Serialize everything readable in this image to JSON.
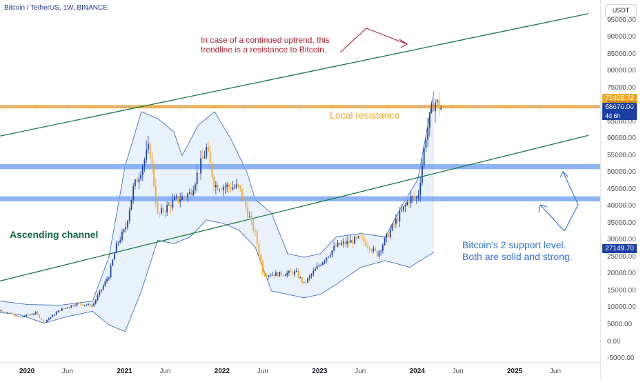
{
  "header": {
    "title": "Bitcoin / TetherUS, 1W, BINANCE",
    "currency_button": "USDT"
  },
  "price_tags": {
    "upper": "71408.72",
    "current": "68670.00",
    "countdown": "4d 6h",
    "lower": "27149.70"
  },
  "annotations": {
    "resistance_note_line1": "In case of a continued uptrend, this",
    "resistance_note_line2": "trendline is a resistance to Bitcoin.",
    "local_resistance": "Local resistance",
    "ascending_channel": "Ascending channel",
    "support_note_line1": "Bitcoin's 2 support level.",
    "support_note_line2": "Both are solid and strong."
  },
  "colors": {
    "up_candle": "#1b3fa3",
    "down_candle": "#f5a623",
    "channel_line": "#157a3e",
    "support_zone": "#7aa7f0",
    "resistance_zone": "#f5b350",
    "bollinger_fill": "#e9f1fb",
    "bollinger_line": "#3d6fc4",
    "red_note": "#b2212f",
    "blue_note": "#2f6fd6"
  },
  "chart_data": {
    "type": "candlestick",
    "symbol": "Bitcoin / TetherUS",
    "interval": "1W",
    "exchange": "BINANCE",
    "x_axis": {
      "ticks": [
        "2020",
        "Jun",
        "2021",
        "Jun",
        "2022",
        "Jun",
        "2023",
        "Jun",
        "2024",
        "Jun",
        "2025",
        "Jun"
      ],
      "range": [
        "2019-08",
        "2025-10"
      ]
    },
    "y_axis": {
      "ticks": [
        "-5000.00",
        "0.00",
        "5000.00",
        "10000.00",
        "15000.00",
        "20000.00",
        "25000.00",
        "30000.00",
        "35000.00",
        "40000.00",
        "45000.00",
        "50000.00",
        "55000.00",
        "60000.00",
        "65000.00",
        "70000.00",
        "75000.00",
        "80000.00",
        "85000.00",
        "90000.00",
        "95000.00"
      ],
      "range": [
        -6000,
        100000
      ],
      "currency": "USDT"
    },
    "price_path_monthly": [
      {
        "t": "2019-08",
        "close": 9600
      },
      {
        "t": "2019-10",
        "close": 9100
      },
      {
        "t": "2019-12",
        "close": 7200
      },
      {
        "t": "2020-02",
        "close": 8500
      },
      {
        "t": "2020-03",
        "close": 5800
      },
      {
        "t": "2020-05",
        "close": 9400
      },
      {
        "t": "2020-07",
        "close": 11300
      },
      {
        "t": "2020-09",
        "close": 10700
      },
      {
        "t": "2020-11",
        "close": 19600
      },
      {
        "t": "2020-12",
        "close": 29000
      },
      {
        "t": "2021-01",
        "close": 33100
      },
      {
        "t": "2021-02",
        "close": 45200
      },
      {
        "t": "2021-04",
        "close": 57700
      },
      {
        "t": "2021-05",
        "close": 37300
      },
      {
        "t": "2021-07",
        "close": 41500
      },
      {
        "t": "2021-09",
        "close": 43800
      },
      {
        "t": "2021-11",
        "close": 57000
      },
      {
        "t": "2021-12",
        "close": 46300
      },
      {
        "t": "2022-03",
        "close": 45500
      },
      {
        "t": "2022-05",
        "close": 31800
      },
      {
        "t": "2022-06",
        "close": 19900
      },
      {
        "t": "2022-08",
        "close": 20000
      },
      {
        "t": "2022-10",
        "close": 20500
      },
      {
        "t": "2022-11",
        "close": 17100
      },
      {
        "t": "2023-01",
        "close": 23100
      },
      {
        "t": "2023-03",
        "close": 28400
      },
      {
        "t": "2023-06",
        "close": 30500
      },
      {
        "t": "2023-08",
        "close": 25900
      },
      {
        "t": "2023-10",
        "close": 34500
      },
      {
        "t": "2023-12",
        "close": 42300
      },
      {
        "t": "2024-01",
        "close": 42600
      },
      {
        "t": "2024-02",
        "close": 61100
      },
      {
        "t": "2024-03",
        "close": 71300
      },
      {
        "t": "2024-04",
        "close": 68670
      }
    ],
    "bollinger_bands": {
      "upper": [
        {
          "t": "2019-08",
          "v": 12500
        },
        {
          "t": "2020-01",
          "v": 11000
        },
        {
          "t": "2020-05",
          "v": 10800
        },
        {
          "t": "2020-09",
          "v": 12000
        },
        {
          "t": "2020-11",
          "v": 25000
        },
        {
          "t": "2021-01",
          "v": 52000
        },
        {
          "t": "2021-03",
          "v": 68000
        },
        {
          "t": "2021-05",
          "v": 66000
        },
        {
          "t": "2021-07",
          "v": 62000
        },
        {
          "t": "2021-08",
          "v": 55000
        },
        {
          "t": "2021-10",
          "v": 64000
        },
        {
          "t": "2021-12",
          "v": 68000
        },
        {
          "t": "2022-02",
          "v": 60000
        },
        {
          "t": "2022-04",
          "v": 50000
        },
        {
          "t": "2022-05",
          "v": 42000
        },
        {
          "t": "2022-07",
          "v": 38000
        },
        {
          "t": "2022-09",
          "v": 26000
        },
        {
          "t": "2022-11",
          "v": 25000
        },
        {
          "t": "2023-01",
          "v": 26000
        },
        {
          "t": "2023-03",
          "v": 31000
        },
        {
          "t": "2023-06",
          "v": 32000
        },
        {
          "t": "2023-09",
          "v": 31000
        },
        {
          "t": "2023-11",
          "v": 40000
        },
        {
          "t": "2024-01",
          "v": 48000
        },
        {
          "t": "2024-03",
          "v": 74000
        }
      ],
      "lower": [
        {
          "t": "2019-08",
          "v": 9000
        },
        {
          "t": "2019-12",
          "v": 8000
        },
        {
          "t": "2020-03",
          "v": 5500
        },
        {
          "t": "2020-06",
          "v": 7500
        },
        {
          "t": "2020-09",
          "v": 9000
        },
        {
          "t": "2020-11",
          "v": 5000
        },
        {
          "t": "2021-01",
          "v": 3000
        },
        {
          "t": "2021-03",
          "v": 15000
        },
        {
          "t": "2021-05",
          "v": 30000
        },
        {
          "t": "2021-07",
          "v": 29000
        },
        {
          "t": "2021-09",
          "v": 31000
        },
        {
          "t": "2021-11",
          "v": 36000
        },
        {
          "t": "2022-01",
          "v": 35000
        },
        {
          "t": "2022-03",
          "v": 33000
        },
        {
          "t": "2022-05",
          "v": 28000
        },
        {
          "t": "2022-07",
          "v": 15000
        },
        {
          "t": "2022-09",
          "v": 14000
        },
        {
          "t": "2022-11",
          "v": 13000
        },
        {
          "t": "2023-01",
          "v": 14000
        },
        {
          "t": "2023-03",
          "v": 17000
        },
        {
          "t": "2023-06",
          "v": 22000
        },
        {
          "t": "2023-09",
          "v": 24000
        },
        {
          "t": "2023-12",
          "v": 22000
        },
        {
          "t": "2024-02",
          "v": 25000
        },
        {
          "t": "2024-04",
          "v": 28000
        }
      ]
    },
    "trendlines": [
      {
        "name": "channel upper",
        "from": {
          "t": "2019-08",
          "v": 60000
        },
        "to": {
          "t": "2025-10",
          "v": 97000
        }
      },
      {
        "name": "channel lower",
        "from": {
          "t": "2019-08",
          "v": 17000
        },
        "to": {
          "t": "2025-10",
          "v": 61000
        }
      }
    ],
    "zones": [
      {
        "name": "Local resistance",
        "from": 69000,
        "to": 70000
      },
      {
        "name": "support upper",
        "from": 51000,
        "to": 52500
      },
      {
        "name": "support lower",
        "from": 41500,
        "to": 43000
      }
    ]
  }
}
